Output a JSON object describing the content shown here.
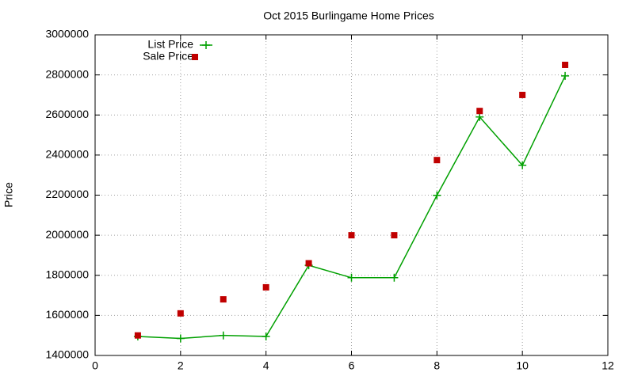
{
  "chart_data": {
    "type": "line",
    "title": "Oct 2015 Burlingame Home Prices",
    "y_label": "Price",
    "x": [
      1,
      2,
      3,
      4,
      5,
      6,
      7,
      8,
      9,
      10,
      11
    ],
    "series": [
      {
        "name": "List Price",
        "color": "#00a000",
        "style": "linespoints",
        "values": [
          1495000,
          1485000,
          1500000,
          1495000,
          1850000,
          1788000,
          1788000,
          2199000,
          2590000,
          2349000,
          2795000
        ]
      },
      {
        "name": "Sale Price",
        "color": "#c00000",
        "style": "points",
        "values": [
          1500000,
          1610000,
          1680000,
          1740000,
          1860000,
          2000000,
          2000000,
          2375000,
          2620000,
          2700000,
          2850000
        ]
      }
    ],
    "xlim": [
      0,
      12
    ],
    "xticks": [
      0,
      2,
      4,
      6,
      8,
      10,
      12
    ],
    "ylim": [
      1400000,
      3000000
    ],
    "yticks": [
      1400000,
      1600000,
      1800000,
      2000000,
      2200000,
      2400000,
      2600000,
      2800000,
      3000000
    ],
    "grid": true,
    "legend": "top-left"
  }
}
